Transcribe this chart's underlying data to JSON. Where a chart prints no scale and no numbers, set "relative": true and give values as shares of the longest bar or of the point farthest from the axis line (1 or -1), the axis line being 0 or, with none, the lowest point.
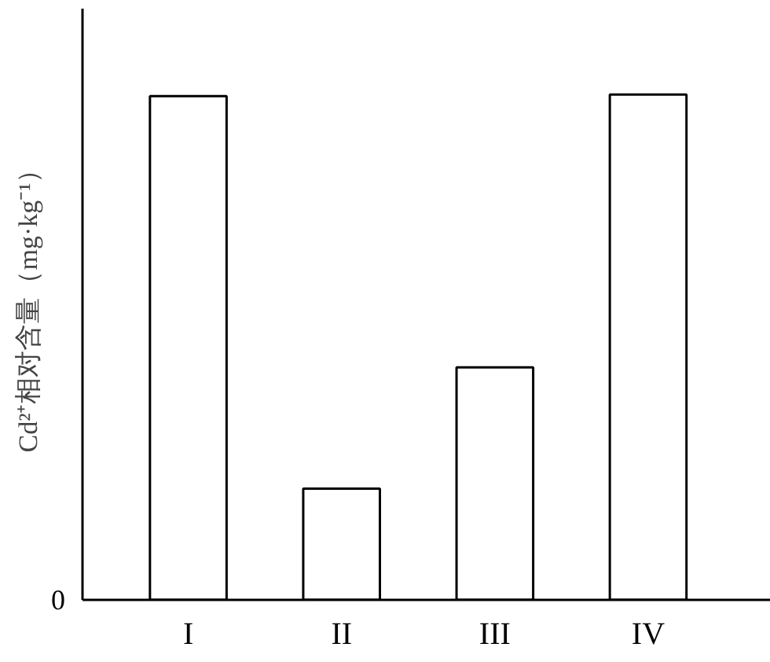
{
  "chart_data": {
    "type": "bar",
    "relative": true,
    "ylabel": "Cd²⁺相对含量（mg·kg⁻¹）",
    "categories": [
      "I",
      "II",
      "III",
      "IV"
    ],
    "values": [
      0.997,
      0.22,
      0.46,
      1
    ],
    "color": "#ffffff",
    "grid": false,
    "annotations": [
      "0"
    ]
  }
}
